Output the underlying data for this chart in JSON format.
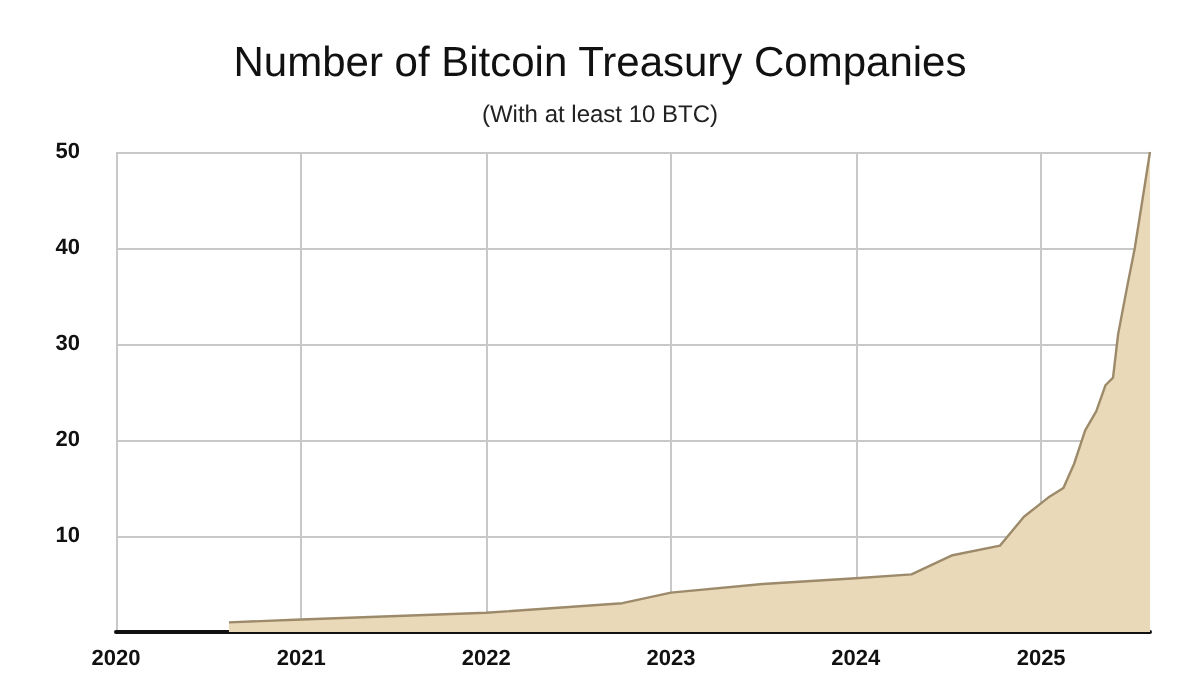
{
  "chart_data": {
    "type": "area",
    "title": "Number of Bitcoin Treasury Companies",
    "subtitle": "(With at least 10 BTC)",
    "x": [
      "2020-08-11",
      "2021-01-01",
      "2022-01-01",
      "2022-09-27",
      "2023-01-01",
      "2023-07-01",
      "2024-01-01",
      "2024-04-20",
      "2024-07-10",
      "2024-10-12",
      "2024-11-28",
      "2025-01-15",
      "2025-02-14",
      "2025-03-07",
      "2025-03-29",
      "2025-04-20",
      "2025-05-08",
      "2025-05-23",
      "2025-06-02",
      "2025-06-20",
      "2025-07-05",
      "2025-07-20",
      "2025-08-04"
    ],
    "series": [
      {
        "color": "#9c8a6a",
        "values": [
          1,
          1.3,
          2,
          3,
          4.1,
          5,
          5.6,
          6,
          8,
          9,
          12,
          14,
          15,
          17.5,
          21,
          23,
          25.7,
          26.5,
          31,
          36,
          40,
          45,
          50
        ]
      }
    ],
    "xlim": [
      "2020-01-01",
      "2025-08-04"
    ],
    "xticks": [
      "2020",
      "2021",
      "2022",
      "2023",
      "2024",
      "2025"
    ],
    "ylim": [
      0,
      50
    ],
    "yticks": [
      {
        "value": 0,
        "label": null
      },
      10,
      20,
      30,
      40,
      50
    ],
    "grid": true
  }
}
